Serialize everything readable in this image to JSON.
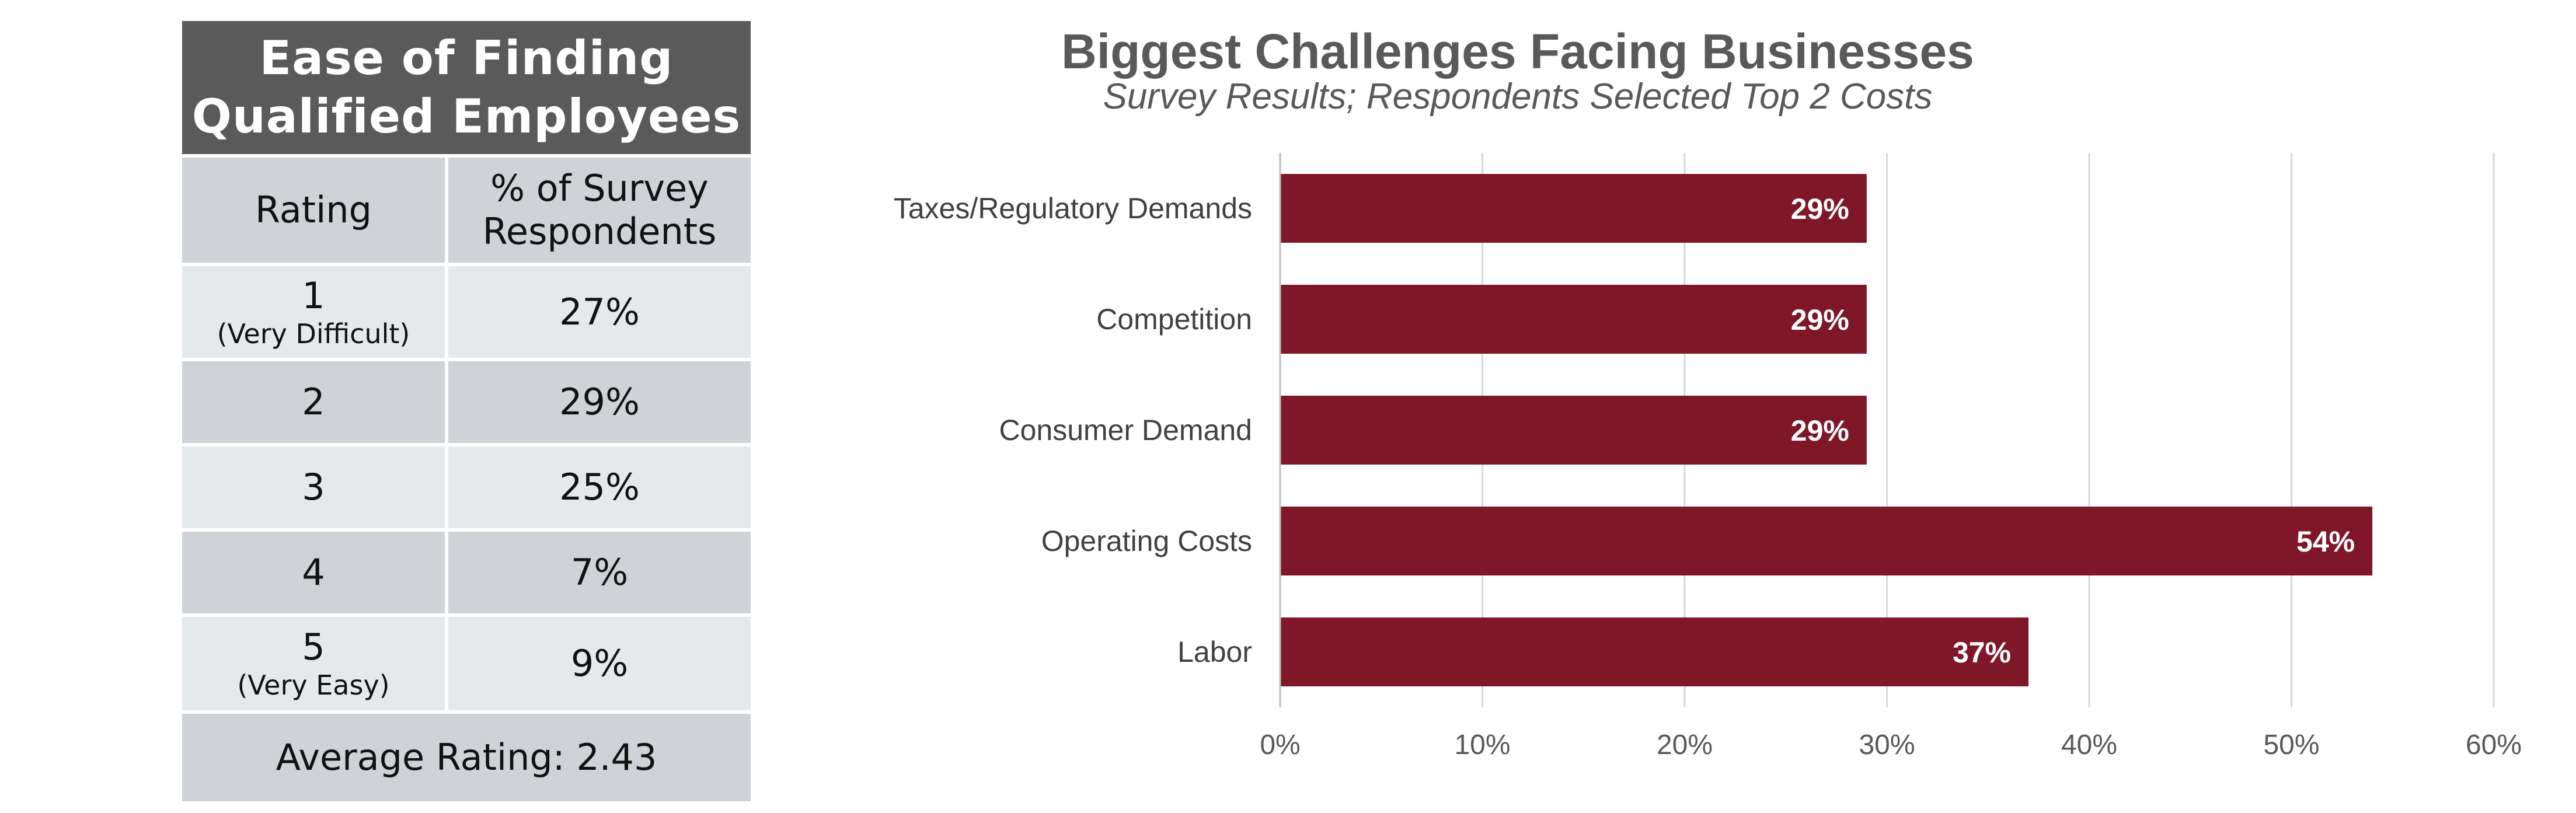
{
  "table": {
    "title": "Ease of Finding\nQualified Employees",
    "headers": [
      "Rating",
      "% of Survey\nRespondents"
    ],
    "rows": [
      {
        "rating": "1",
        "note": "(Very Difficult)",
        "percent": "27%"
      },
      {
        "rating": "2",
        "note": "",
        "percent": "29%"
      },
      {
        "rating": "3",
        "note": "",
        "percent": "25%"
      },
      {
        "rating": "4",
        "note": "",
        "percent": "7%"
      },
      {
        "rating": "5",
        "note": "(Very Easy)",
        "percent": "9%"
      }
    ],
    "average": "Average Rating: 2.43"
  },
  "chart_data": {
    "type": "bar",
    "orientation": "horizontal",
    "title": "Biggest Challenges Facing Businesses",
    "subtitle": "Survey Results; Respondents Selected Top 2 Costs",
    "categories": [
      "Taxes/Regulatory Demands",
      "Competition",
      "Consumer Demand",
      "Operating Costs",
      "Labor"
    ],
    "values": [
      29,
      29,
      29,
      54,
      37
    ],
    "data_labels": [
      "29%",
      "29%",
      "29%",
      "54%",
      "37%"
    ],
    "xlim": [
      0,
      60
    ],
    "x_ticks": [
      0,
      10,
      20,
      30,
      40,
      50,
      60
    ],
    "x_tick_labels": [
      "0%",
      "10%",
      "20%",
      "30%",
      "40%",
      "50%",
      "60%"
    ],
    "grid": "vertical",
    "legend": "none",
    "bar_color": "#7f1729"
  }
}
